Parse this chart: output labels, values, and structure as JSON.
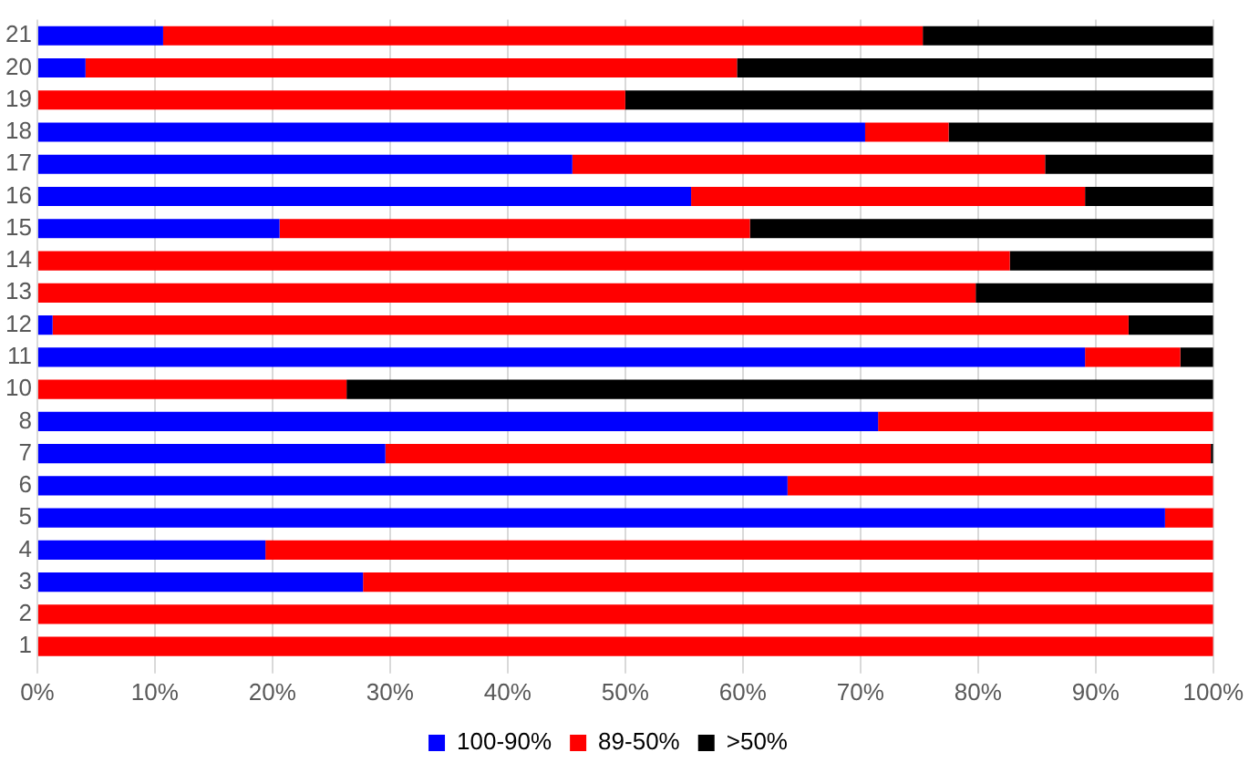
{
  "chart_data": {
    "type": "bar",
    "orientation": "horizontal",
    "stacked": true,
    "categories": [
      "21",
      "20",
      "19",
      "18",
      "17",
      "16",
      "15",
      "14",
      "13",
      "12",
      "11",
      "10",
      "8",
      "7",
      "6",
      "5",
      "4",
      "3",
      "2",
      "1"
    ],
    "series": [
      {
        "name": "100-90%",
        "color": "#0000ff",
        "values": [
          10.7,
          4.1,
          0,
          70.4,
          45.5,
          55.6,
          20.6,
          0,
          0,
          1.3,
          89.1,
          0,
          71.5,
          29.6,
          63.8,
          95.9,
          19.4,
          27.7,
          0,
          0
        ]
      },
      {
        "name": "89-50%",
        "color": "#ff0000",
        "values": [
          64.6,
          55.4,
          50,
          7.1,
          40.2,
          33.5,
          40,
          82.7,
          79.8,
          91.5,
          8.1,
          26.3,
          28.5,
          70.2,
          36.2,
          4.1,
          80.6,
          72.3,
          100,
          100
        ]
      },
      {
        "name": ">50%",
        "color": "#000000",
        "values": [
          24.7,
          40.5,
          50,
          22.5,
          14.3,
          10.9,
          39.4,
          17.3,
          20.2,
          7.2,
          2.8,
          73.7,
          0,
          0.2,
          0,
          0,
          0,
          0,
          0,
          0
        ]
      }
    ],
    "xlim": [
      0,
      100
    ],
    "xticks": [
      {
        "value": 0,
        "label": "0%"
      },
      {
        "value": 10,
        "label": "10%"
      },
      {
        "value": 20,
        "label": "20%"
      },
      {
        "value": 30,
        "label": "30%"
      },
      {
        "value": 40,
        "label": "40%"
      },
      {
        "value": 50,
        "label": "50%"
      },
      {
        "value": 60,
        "label": "60%"
      },
      {
        "value": 70,
        "label": "70%"
      },
      {
        "value": 80,
        "label": "80%"
      },
      {
        "value": 90,
        "label": "90%"
      },
      {
        "value": 100,
        "label": "100%"
      }
    ],
    "grid": "x",
    "legend": "bottom"
  }
}
